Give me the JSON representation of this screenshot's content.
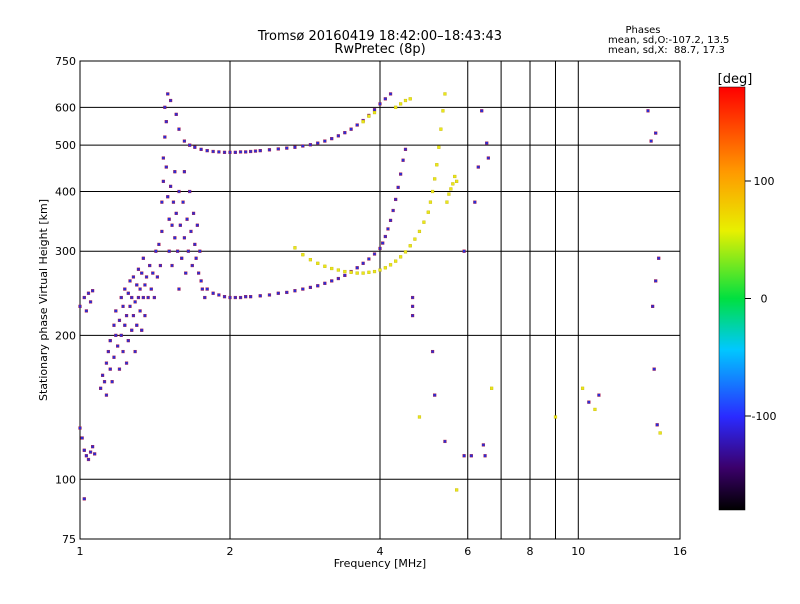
{
  "chart_data": {
    "type": "scatter",
    "title": "Tromsø 20160419 18:42:00–18:43:43",
    "subtitle": "RwPretec (8p)",
    "xlabel": "Frequency [MHz]",
    "ylabel": "Stationary phase Virtual Height [km]",
    "x_scale": "log",
    "y_scale": "log",
    "xlim": [
      1,
      16
    ],
    "ylim": [
      75,
      750
    ],
    "x_ticks": [
      1,
      2,
      4,
      6,
      8,
      10,
      16
    ],
    "x_minor_gridlines": [
      7,
      9
    ],
    "y_ticks": [
      75,
      100,
      200,
      300,
      400,
      500,
      600,
      750
    ],
    "grid": true,
    "phase_stats": {
      "header": "Phases",
      "line_o": "mean, sd,O:-107.2, 13.5",
      "line_x": "mean, sd,X:  88.7, 17.3"
    },
    "colorbar": {
      "label": "[deg]",
      "min": -180,
      "max": 180,
      "ticks": [
        -100,
        0,
        100
      ]
    },
    "colors": {
      "background": "#ffffff",
      "axes": "#000000",
      "o_trace_fill": "#2a2fd6",
      "o_trace_edge": "#b0103a",
      "x_trace": "#e8e81a"
    },
    "series": [
      {
        "points": [
          [
            1.0,
            230
          ],
          [
            1.02,
            240
          ],
          [
            1.03,
            225
          ],
          [
            1.04,
            245
          ],
          [
            1.05,
            235
          ],
          [
            1.06,
            248
          ],
          [
            1.0,
            128
          ],
          [
            1.01,
            122
          ],
          [
            1.02,
            115
          ],
          [
            1.03,
            112
          ],
          [
            1.04,
            110
          ],
          [
            1.05,
            114
          ],
          [
            1.06,
            117
          ],
          [
            1.07,
            113
          ],
          [
            1.02,
            91
          ],
          [
            1.1,
            155
          ],
          [
            1.11,
            165
          ],
          [
            1.12,
            160
          ],
          [
            1.13,
            175
          ],
          [
            1.13,
            150
          ],
          [
            1.14,
            185
          ],
          [
            1.15,
            170
          ],
          [
            1.15,
            195
          ],
          [
            1.16,
            160
          ],
          [
            1.17,
            210
          ],
          [
            1.17,
            180
          ],
          [
            1.18,
            200
          ],
          [
            1.18,
            225
          ],
          [
            1.19,
            190
          ],
          [
            1.2,
            215
          ],
          [
            1.2,
            170
          ],
          [
            1.21,
            240
          ],
          [
            1.21,
            200
          ],
          [
            1.22,
            230
          ],
          [
            1.22,
            185
          ],
          [
            1.23,
            250
          ],
          [
            1.23,
            210
          ],
          [
            1.24,
            220
          ],
          [
            1.24,
            175
          ],
          [
            1.25,
            245
          ],
          [
            1.25,
            195
          ],
          [
            1.26,
            230
          ],
          [
            1.26,
            260
          ],
          [
            1.27,
            205
          ],
          [
            1.27,
            240
          ],
          [
            1.28,
            220
          ],
          [
            1.28,
            265
          ],
          [
            1.29,
            235
          ],
          [
            1.29,
            185
          ],
          [
            1.3,
            255
          ],
          [
            1.3,
            210
          ],
          [
            1.31,
            240
          ],
          [
            1.31,
            275
          ],
          [
            1.32,
            225
          ],
          [
            1.32,
            250
          ],
          [
            1.33,
            205
          ],
          [
            1.33,
            270
          ],
          [
            1.34,
            240
          ],
          [
            1.34,
            290
          ],
          [
            1.35,
            255
          ],
          [
            1.35,
            220
          ],
          [
            1.36,
            265
          ],
          [
            1.37,
            240
          ],
          [
            1.38,
            280
          ],
          [
            1.39,
            250
          ],
          [
            1.4,
            270
          ],
          [
            1.41,
            240
          ],
          [
            1.42,
            300
          ],
          [
            1.43,
            265
          ],
          [
            1.44,
            310
          ],
          [
            1.45,
            280
          ],
          [
            1.46,
            330
          ],
          [
            1.46,
            380
          ],
          [
            1.47,
            420
          ],
          [
            1.47,
            470
          ],
          [
            1.48,
            520
          ],
          [
            1.48,
            600
          ],
          [
            1.49,
            560
          ],
          [
            1.49,
            450
          ],
          [
            1.5,
            640
          ],
          [
            1.5,
            390
          ],
          [
            1.51,
            350
          ],
          [
            1.51,
            300
          ],
          [
            1.52,
            620
          ],
          [
            1.52,
            410
          ],
          [
            1.53,
            340
          ],
          [
            1.53,
            280
          ],
          [
            1.54,
            380
          ],
          [
            1.55,
            320
          ],
          [
            1.55,
            440
          ],
          [
            1.56,
            360
          ],
          [
            1.57,
            300
          ],
          [
            1.58,
            400
          ],
          [
            1.58,
            250
          ],
          [
            1.59,
            340
          ],
          [
            1.6,
            290
          ],
          [
            1.61,
            380
          ],
          [
            1.62,
            320
          ],
          [
            1.62,
            440
          ],
          [
            1.63,
            270
          ],
          [
            1.64,
            350
          ],
          [
            1.65,
            300
          ],
          [
            1.66,
            400
          ],
          [
            1.67,
            330
          ],
          [
            1.68,
            280
          ],
          [
            1.69,
            360
          ],
          [
            1.7,
            310
          ],
          [
            1.71,
            290
          ],
          [
            1.72,
            340
          ],
          [
            1.73,
            270
          ],
          [
            1.74,
            300
          ],
          [
            1.75,
            260
          ],
          [
            1.76,
            250
          ],
          [
            1.78,
            240
          ],
          [
            1.56,
            580
          ],
          [
            1.58,
            540
          ],
          [
            1.62,
            510
          ],
          [
            1.66,
            500
          ],
          [
            1.7,
            495
          ],
          [
            1.75,
            490
          ],
          [
            1.8,
            487
          ],
          [
            1.85,
            485
          ],
          [
            1.9,
            484
          ],
          [
            1.95,
            483
          ],
          [
            2.0,
            483
          ],
          [
            2.05,
            483
          ],
          [
            2.1,
            484
          ],
          [
            2.15,
            484
          ],
          [
            2.2,
            485
          ],
          [
            2.25,
            486
          ],
          [
            2.3,
            487
          ],
          [
            2.4,
            489
          ],
          [
            2.5,
            491
          ],
          [
            2.6,
            493
          ],
          [
            2.7,
            495
          ],
          [
            2.8,
            498
          ],
          [
            2.9,
            501
          ],
          [
            3.0,
            505
          ],
          [
            3.1,
            510
          ],
          [
            3.2,
            516
          ],
          [
            3.3,
            523
          ],
          [
            3.4,
            531
          ],
          [
            3.5,
            540
          ],
          [
            3.6,
            551
          ],
          [
            3.7,
            563
          ],
          [
            3.8,
            577
          ],
          [
            3.9,
            593
          ],
          [
            4.0,
            610
          ],
          [
            4.1,
            625
          ],
          [
            4.2,
            640
          ],
          [
            1.8,
            250
          ],
          [
            1.85,
            245
          ],
          [
            1.9,
            243
          ],
          [
            1.95,
            241
          ],
          [
            2.0,
            240
          ],
          [
            2.05,
            240
          ],
          [
            2.1,
            240
          ],
          [
            2.15,
            241
          ],
          [
            2.2,
            241
          ],
          [
            2.3,
            242
          ],
          [
            2.4,
            243
          ],
          [
            2.5,
            245
          ],
          [
            2.6,
            246
          ],
          [
            2.7,
            248
          ],
          [
            2.8,
            250
          ],
          [
            2.9,
            252
          ],
          [
            3.0,
            254
          ],
          [
            3.1,
            257
          ],
          [
            3.2,
            260
          ],
          [
            3.3,
            263
          ],
          [
            3.4,
            267
          ],
          [
            3.5,
            272
          ],
          [
            3.6,
            277
          ],
          [
            3.7,
            283
          ],
          [
            3.8,
            289
          ],
          [
            3.9,
            296
          ],
          [
            4.0,
            304
          ],
          [
            4.05,
            312
          ],
          [
            4.1,
            322
          ],
          [
            4.15,
            334
          ],
          [
            4.2,
            348
          ],
          [
            4.25,
            365
          ],
          [
            4.3,
            385
          ],
          [
            4.35,
            408
          ],
          [
            4.4,
            435
          ],
          [
            4.45,
            465
          ],
          [
            4.5,
            490
          ],
          [
            4.65,
            240
          ],
          [
            4.65,
            230
          ],
          [
            4.65,
            220
          ],
          [
            5.1,
            185
          ],
          [
            5.15,
            150
          ],
          [
            5.4,
            120
          ],
          [
            5.9,
            112
          ],
          [
            6.1,
            112
          ],
          [
            6.45,
            118
          ],
          [
            6.5,
            112
          ],
          [
            6.6,
            470
          ],
          [
            6.4,
            590
          ],
          [
            6.3,
            450
          ],
          [
            6.2,
            380
          ],
          [
            6.55,
            505
          ],
          [
            5.9,
            300
          ],
          [
            13.8,
            590
          ],
          [
            14.0,
            510
          ],
          [
            14.3,
            530
          ],
          [
            14.3,
            260
          ],
          [
            14.1,
            230
          ],
          [
            14.2,
            170
          ],
          [
            14.4,
            130
          ],
          [
            14.5,
            290
          ],
          [
            11.0,
            150
          ],
          [
            10.5,
            145
          ]
        ]
      },
      {
        "points": [
          [
            2.7,
            305
          ],
          [
            2.8,
            295
          ],
          [
            2.9,
            288
          ],
          [
            3.0,
            283
          ],
          [
            3.1,
            279
          ],
          [
            3.2,
            276
          ],
          [
            3.3,
            274
          ],
          [
            3.4,
            272
          ],
          [
            3.5,
            271
          ],
          [
            3.6,
            270
          ],
          [
            3.7,
            270
          ],
          [
            3.8,
            271
          ],
          [
            3.9,
            272
          ],
          [
            4.0,
            274
          ],
          [
            4.1,
            277
          ],
          [
            4.2,
            281
          ],
          [
            4.3,
            286
          ],
          [
            4.4,
            292
          ],
          [
            4.5,
            299
          ],
          [
            4.6,
            308
          ],
          [
            4.7,
            318
          ],
          [
            4.8,
            330
          ],
          [
            4.9,
            345
          ],
          [
            5.0,
            362
          ],
          [
            5.05,
            380
          ],
          [
            5.1,
            400
          ],
          [
            5.15,
            425
          ],
          [
            5.2,
            455
          ],
          [
            5.25,
            495
          ],
          [
            5.3,
            540
          ],
          [
            5.35,
            590
          ],
          [
            5.4,
            640
          ],
          [
            4.3,
            600
          ],
          [
            4.4,
            610
          ],
          [
            4.5,
            620
          ],
          [
            4.6,
            625
          ],
          [
            3.7,
            560
          ],
          [
            3.8,
            575
          ],
          [
            3.9,
            585
          ],
          [
            5.45,
            380
          ],
          [
            5.5,
            395
          ],
          [
            5.55,
            405
          ],
          [
            5.6,
            415
          ],
          [
            5.65,
            430
          ],
          [
            5.7,
            420
          ],
          [
            5.7,
            95
          ],
          [
            4.8,
            135
          ],
          [
            10.2,
            155
          ],
          [
            10.8,
            140
          ],
          [
            6.7,
            155
          ],
          [
            9.0,
            135
          ],
          [
            14.6,
            125
          ]
        ]
      }
    ]
  }
}
